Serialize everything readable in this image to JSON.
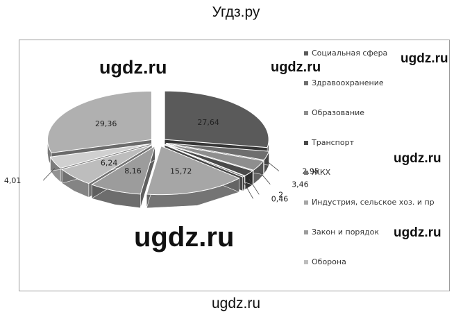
{
  "page": {
    "title": "Угдз.ру",
    "watermarks": [
      "ugdz.ru",
      "ugdz.ru",
      "ugdz.ru",
      "ugdz.ru",
      "ugdz.ru",
      "ugdz.ru",
      "ugdz.ru"
    ]
  },
  "chart_data": {
    "type": "pie",
    "style": "3d-exploded",
    "legend_position": "right",
    "series": [
      {
        "name": "Социальная сфера",
        "value": 27.64,
        "label": "27,64",
        "color": "#5a5a5a"
      },
      {
        "name": "Здравоохранение",
        "value": 2.95,
        "label": "2,95",
        "color": "#6e6e6e"
      },
      {
        "name": "Образование",
        "value": 3.46,
        "label": "3,46",
        "color": "#8e8e8e"
      },
      {
        "name": "Транспорт",
        "value": 2,
        "label": "2",
        "color": "#4a4a4a"
      },
      {
        "name": "ЖКХ",
        "value": 0.46,
        "label": "0,46",
        "color": "#777777"
      },
      {
        "name": "Индустрия, сельское хоз. и пр",
        "value": 15.72,
        "label": "15,72",
        "color": "#a6a6a6"
      },
      {
        "name": "Закон и порядок",
        "value": 8.16,
        "label": "8,16",
        "color": "#9c9c9c"
      },
      {
        "name": "Оборона",
        "value": 6.24,
        "label": "6,24",
        "color": "#bdbdbd"
      },
      {
        "name": "",
        "value": 4.01,
        "label": "4,01",
        "color": "#d0d0d0"
      },
      {
        "name": "",
        "value": 29.36,
        "label": "29,36",
        "color": "#b0b0b0"
      }
    ]
  }
}
